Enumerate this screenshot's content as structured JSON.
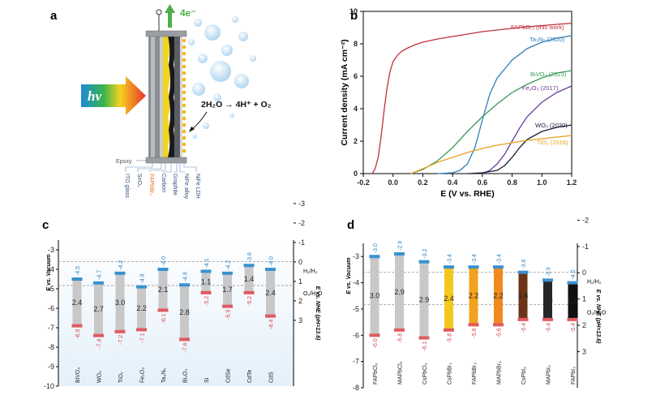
{
  "panel_labels": {
    "a": "a",
    "b": "b",
    "c": "c",
    "d": "d"
  },
  "panel_a": {
    "electron_label": "4e⁻",
    "hv_label": "hv",
    "reaction": "2H₂O → 4H⁺ + O₂",
    "epoxy_label": "Epoxy",
    "layers": [
      "ITO glass",
      "SnO₂",
      "FAPbBr₃",
      "Carbon",
      "Graphite",
      "NiFe alloy",
      "NiFe LDH"
    ],
    "highlight_layer_color": "#e8711a"
  },
  "chart_data": [
    {
      "id": "panel-b",
      "type": "line",
      "xlabel": "E (V vs. RHE)",
      "ylabel": "Current density (mA cm⁻²)",
      "xlim": [
        -0.2,
        1.2
      ],
      "ylim": [
        0,
        10
      ],
      "xticks": [
        "-0.2",
        "0.0",
        "0.2",
        "0.4",
        "0.6",
        "0.8",
        "1.0",
        "1.2"
      ],
      "yticks": [
        "0",
        "2",
        "4",
        "6",
        "8",
        "10"
      ],
      "series": [
        {
          "name": "FAPbBr₃ (this work)",
          "color": "#c0303c",
          "x": [
            -0.14,
            -0.12,
            -0.1,
            -0.08,
            -0.06,
            -0.04,
            -0.02,
            0.0,
            0.03,
            0.06,
            0.1,
            0.15,
            0.2,
            0.3,
            0.4,
            0.5,
            0.6,
            0.7,
            0.8,
            0.9,
            1.0,
            1.1,
            1.2
          ],
          "y": [
            0,
            0.3,
            1.0,
            2.3,
            3.9,
            5.3,
            6.3,
            6.9,
            7.3,
            7.55,
            7.75,
            7.95,
            8.1,
            8.3,
            8.45,
            8.6,
            8.75,
            8.85,
            8.95,
            9.05,
            9.12,
            9.2,
            9.27
          ]
        },
        {
          "name": "Ta₃N₅ (2020)",
          "color": "#2d7fb8",
          "x": [
            0.3,
            0.4,
            0.45,
            0.5,
            0.55,
            0.6,
            0.65,
            0.7,
            0.8,
            0.9,
            1.0,
            1.1,
            1.2
          ],
          "y": [
            0,
            0.05,
            0.2,
            0.6,
            1.6,
            3.3,
            4.9,
            5.9,
            7.0,
            7.7,
            8.1,
            8.35,
            8.5
          ]
        },
        {
          "name": "BiVO₄ (2023)",
          "color": "#3a9a5c",
          "x": [
            0.12,
            0.2,
            0.3,
            0.4,
            0.5,
            0.6,
            0.7,
            0.8,
            0.9,
            1.0,
            1.1,
            1.2
          ],
          "y": [
            0,
            0.25,
            0.8,
            1.6,
            2.6,
            3.5,
            4.3,
            5.0,
            5.5,
            5.9,
            6.2,
            6.35
          ]
        },
        {
          "name": "Fe₂O₃ (2017)",
          "color": "#6a3c9a",
          "x": [
            0.6,
            0.65,
            0.7,
            0.75,
            0.8,
            0.85,
            0.9,
            1.0,
            1.1,
            1.2
          ],
          "y": [
            0,
            0.2,
            0.6,
            1.2,
            2.0,
            2.8,
            3.5,
            4.4,
            5.0,
            5.4
          ]
        },
        {
          "name": "WO₃ (2020)",
          "color": "#1a1a3a",
          "x": [
            0.5,
            0.6,
            0.7,
            0.75,
            0.8,
            0.85,
            0.9,
            1.0,
            1.1,
            1.2
          ],
          "y": [
            0,
            0.05,
            0.2,
            0.5,
            1.0,
            1.6,
            2.1,
            2.6,
            2.85,
            3.0
          ]
        },
        {
          "name": "TiO₂ (2016)",
          "color": "#e8a020",
          "x": [
            0.12,
            0.2,
            0.3,
            0.4,
            0.5,
            0.6,
            0.7,
            0.8,
            0.9,
            1.0,
            1.1,
            1.2
          ],
          "y": [
            0,
            0.3,
            0.7,
            1.0,
            1.3,
            1.55,
            1.75,
            1.9,
            2.05,
            2.15,
            2.25,
            2.35
          ]
        }
      ]
    },
    {
      "id": "panel-c",
      "type": "bar",
      "ylabel_left": "E vs. Vacuum",
      "ylabel_right": "E vs. NHE (pH=13.6)",
      "ylim": [
        -10,
        -2.5
      ],
      "yticks_left": [
        "-3",
        "-4",
        "-5",
        "-6",
        "-7",
        "-8",
        "-9",
        "-10"
      ],
      "yticks_right": [
        "-3",
        "-2",
        "-1",
        "0",
        "1",
        "2",
        "3"
      ],
      "h2_label": "H₂/H₂",
      "o2_label": "O₂/H₂O",
      "h2_level": -3.6,
      "o2_level": -4.83,
      "materials": [
        {
          "name": "BiVO₄",
          "cb": -4.5,
          "vb": -6.9,
          "gap": "2.4",
          "cb_label": "-4.5",
          "vb_label": "-6.9"
        },
        {
          "name": "WO₃",
          "cb": -4.7,
          "vb": -7.4,
          "gap": "2.7",
          "cb_label": "-4.7",
          "vb_label": "-7.4"
        },
        {
          "name": "TiO₂",
          "cb": -4.2,
          "vb": -7.2,
          "gap": "3.0",
          "cb_label": "-4.2",
          "vb_label": "-7.2"
        },
        {
          "name": "Fe₂O₃",
          "cb": -4.9,
          "vb": -7.1,
          "gap": "2.2",
          "cb_label": "-4.9",
          "vb_label": "-7.1"
        },
        {
          "name": "Ta₃N₅",
          "cb": -4.0,
          "vb": -6.1,
          "gap": "2.1",
          "cb_label": "-4.0",
          "vb_label": "-6.1"
        },
        {
          "name": "Bi₂O₃",
          "cb": -4.8,
          "vb": -7.6,
          "gap": "2.8",
          "cb_label": "-4.8",
          "vb_label": "-7.6"
        },
        {
          "name": "Si",
          "cb": -4.1,
          "vb": -5.2,
          "gap": "1.1",
          "cb_label": "-4.1",
          "vb_label": "-5.2"
        },
        {
          "name": "CdSe",
          "cb": -4.2,
          "vb": -5.9,
          "gap": "1.7",
          "cb_label": "-4.2",
          "vb_label": "-5.9"
        },
        {
          "name": "CdTe",
          "cb": -3.8,
          "vb": -5.2,
          "gap": "1.4",
          "cb_label": "-3.8",
          "vb_label": "-5.2"
        },
        {
          "name": "CdS",
          "cb": -4.0,
          "vb": -6.4,
          "gap": "2.4",
          "cb_label": "-4.0",
          "vb_label": "-6.4"
        }
      ]
    },
    {
      "id": "panel-d",
      "type": "bar",
      "ylabel_left": "E vs. Vacuum",
      "ylabel_right": "E vs. NHE (pH=13.6)",
      "ylim": [
        -8,
        -2.5
      ],
      "yticks_left": [
        "-3",
        "-4",
        "-5",
        "-6",
        "-7",
        "-8"
      ],
      "yticks_right": [
        "-2",
        "-1",
        "0",
        "1",
        "2",
        "3"
      ],
      "h2_label": "H₂/H₂",
      "o2_label": "O₂/H₂O",
      "h2_level": -3.6,
      "o2_level": -4.83,
      "materials": [
        {
          "name": "FAPbCl₃",
          "cb": -3.0,
          "vb": -6.0,
          "gap": "3.0",
          "cb_label": "-3.0",
          "vb_label": "-6.0",
          "color": "#c8c8c8"
        },
        {
          "name": "MAPbCl₃",
          "cb": -2.9,
          "vb": -5.8,
          "gap": "2.9",
          "cb_label": "-2.9",
          "vb_label": "-5.8",
          "color": "#c8c8c8"
        },
        {
          "name": "CsPbCl₃",
          "cb": -3.2,
          "vb": -6.1,
          "gap": "2.9",
          "cb_label": "-3.2",
          "vb_label": "-6.1",
          "color": "#c8c8c8"
        },
        {
          "name": "CsPbBr₃",
          "cb": -3.4,
          "vb": -5.8,
          "gap": "2.4",
          "cb_label": "-3.4",
          "vb_label": "-5.8",
          "color": "#f2c81e"
        },
        {
          "name": "FAPbBr₃",
          "cb": -3.4,
          "vb": -5.6,
          "gap": "2.2",
          "cb_label": "-3.4",
          "vb_label": "-5.6",
          "color": "#f2a21e"
        },
        {
          "name": "MAPbBr₃",
          "cb": -3.4,
          "vb": -5.6,
          "gap": "2.2",
          "cb_label": "-3.4",
          "vb_label": "-5.6",
          "color": "#f08a1e"
        },
        {
          "name": "CsPbI₃",
          "cb": -3.6,
          "vb": -5.4,
          "gap": "1.8",
          "cb_label": "-3.6",
          "vb_label": "-5.4",
          "color": "#6b3416"
        },
        {
          "name": "MAPbI₃",
          "cb": -3.9,
          "vb": -5.4,
          "gap": "1.5",
          "cb_label": "-3.9",
          "vb_label": "-5.4",
          "color": "#262626"
        },
        {
          "name": "FAPbI₃",
          "cb": -4.0,
          "vb": -5.4,
          "gap": "1.4",
          "cb_label": "-4.0",
          "vb_label": "-5.4",
          "color": "#101010"
        }
      ]
    }
  ],
  "colors": {
    "cb": "#3a92d0",
    "vb": "#e05a60",
    "bar_default": "#c8c8c8",
    "cb_text": "#2f86c7",
    "vb_text": "#d9454d",
    "dashed": "#999999",
    "panel_bg": "#e9f3fb"
  }
}
